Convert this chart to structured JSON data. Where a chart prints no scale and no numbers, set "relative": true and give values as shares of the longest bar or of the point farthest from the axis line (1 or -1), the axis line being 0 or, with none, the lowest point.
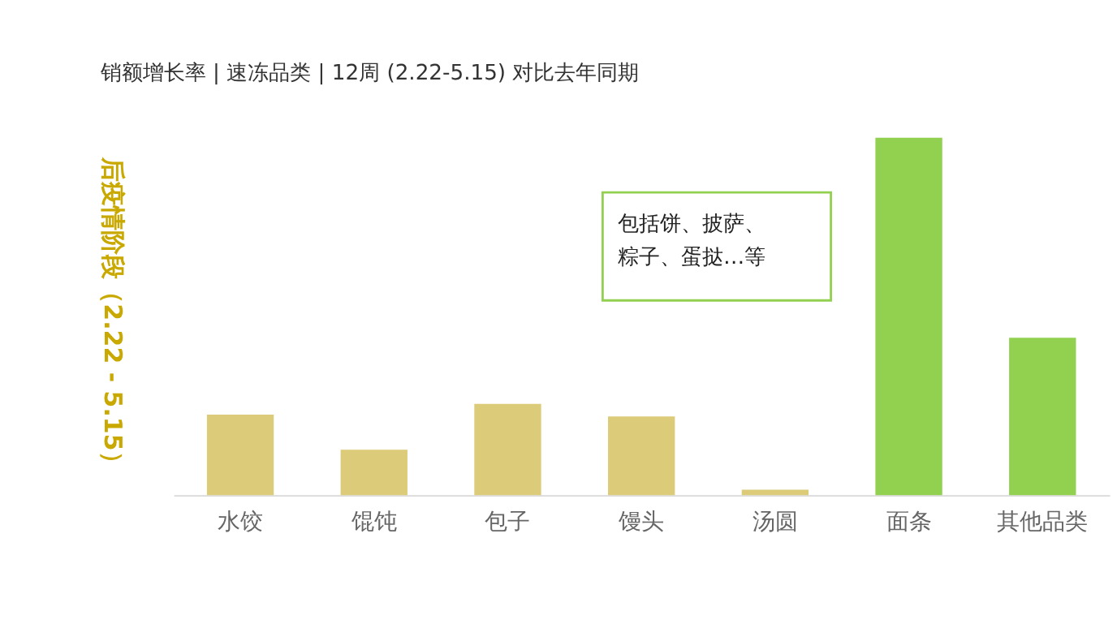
{
  "chart_data": {
    "type": "bar",
    "title": "销额增长率 | 速冻品类 | 12周 (2.22-5.15) 对比去年同期",
    "categories": [
      "水饺",
      "馄饨",
      "包子",
      "馒头",
      "汤圆",
      "面条",
      "其他品类"
    ],
    "values": [
      0.225,
      0.127,
      0.255,
      0.22,
      0.015,
      1,
      0.44
    ],
    "colors": [
      "#dccb78",
      "#dccb78",
      "#dccb78",
      "#dccb78",
      "#dccb78",
      "#92d050",
      "#92d050"
    ],
    "relative": true,
    "grid": false,
    "annotations": [
      "后疫情阶段（2.22 - 5.15）",
      "包括饼、披萨、粽子、蛋挞…等"
    ]
  }
}
